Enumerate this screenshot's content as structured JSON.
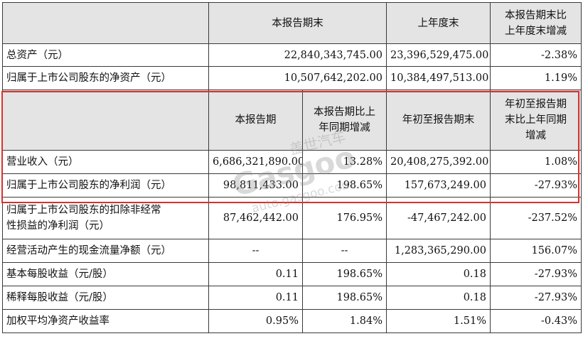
{
  "header1": {
    "col1": "本报告期末",
    "col2": "上年度末",
    "col3_line1": "本报告期末比",
    "col3_line2": "上年度末增减"
  },
  "rows1": [
    {
      "label": "总资产（元）",
      "v1": "22,840,343,745.00",
      "v2": "23,396,529,475.00",
      "v3": "-2.38%"
    },
    {
      "label": "归属于上市公司股东的净资产（元）",
      "v1": "10,507,642,202.00",
      "v2": "10,384,497,513.00",
      "v3": "1.19%"
    }
  ],
  "header2": {
    "col1": "本报告期",
    "col2_line1": "本报告期比上",
    "col2_line2": "年同期增减",
    "col3": "年初至报告期末",
    "col4_line1": "年初至报告期",
    "col4_line2": "末比上年同期",
    "col4_line3": "增减"
  },
  "rows2": [
    {
      "label": "营业收入（元）",
      "v1": "6,686,321,890.00",
      "v2": "13.28%",
      "v3": "20,408,275,392.00",
      "v4": "1.08%"
    },
    {
      "label": "归属于上市公司股东的净利润（元）",
      "v1": "98,811,433.00",
      "v2": "198.65%",
      "v3": "157,673,249.00",
      "v4": "-27.93%"
    },
    {
      "label_line1": "归属于上市公司股东的扣除非经常",
      "label_line2": "性损益的净利润（元）",
      "v1": "87,462,442.00",
      "v2": "176.95%",
      "v3": "-47,467,242.00",
      "v4": "-237.52%"
    },
    {
      "label": "经营活动产生的现金流量净额（元）",
      "v1": "--",
      "v2": "--",
      "v3": "1,283,365,290.00",
      "v4": "156.07%"
    },
    {
      "label": "基本每股收益（元/股）",
      "v1": "0.11",
      "v2": "198.65%",
      "v3": "0.18",
      "v4": "-27.93%"
    },
    {
      "label": "稀释每股收益（元/股）",
      "v1": "0.11",
      "v2": "198.65%",
      "v3": "0.18",
      "v4": "-27.93%"
    },
    {
      "label": "加权平均净资产收益率",
      "v1": "0.95%",
      "v2": "1.84%",
      "v3": "1.51%",
      "v4": "-0.43%"
    }
  ],
  "watermark": {
    "brand": "盖世汽车",
    "logo": "Gasgoo",
    "url": "auto.gasgoo.com"
  },
  "colors": {
    "highlight_border": "#d9302c",
    "header_bg": "#e4e4e4",
    "grid": "#3a3a3a"
  }
}
